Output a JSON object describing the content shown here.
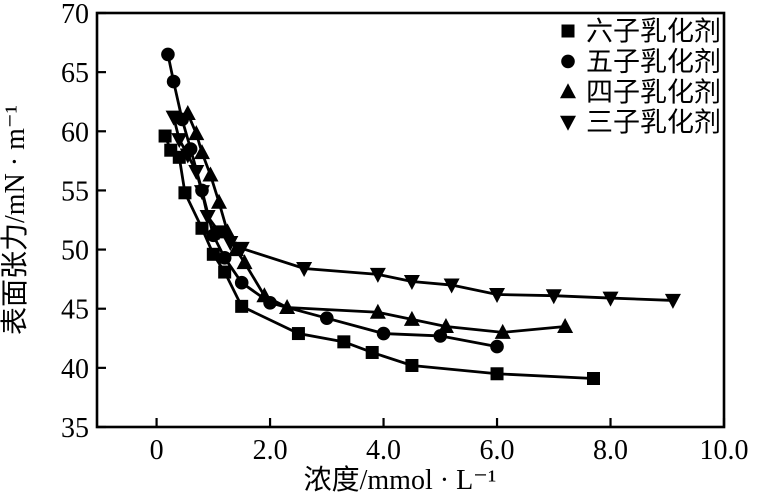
{
  "figure": {
    "background_color": "#ffffff",
    "ink_color": "#000000"
  },
  "chart_data": {
    "type": "line",
    "title": "",
    "xlabel": "浓度/mmol · L⁻¹",
    "ylabel": "表面张力/mN · m⁻¹",
    "xlim": [
      -1.05,
      10.0
    ],
    "ylim": [
      35,
      70
    ],
    "x_ticks": [
      0,
      2.0,
      4.0,
      6.0,
      8.0,
      10.0
    ],
    "x_tick_labels": [
      "0",
      "2.0",
      "4.0",
      "6.0",
      "8.0",
      "10.0"
    ],
    "y_ticks": [
      35,
      40,
      45,
      50,
      55,
      60,
      65,
      70
    ],
    "y_tick_labels": [
      "35",
      "40",
      "45",
      "50",
      "55",
      "60",
      "65",
      "70"
    ],
    "grid": false,
    "legend_position": "top-right-inside",
    "series": [
      {
        "name": "六子乳化剂",
        "marker": "square",
        "color": "#000000",
        "x": [
          0.15,
          0.25,
          0.4,
          0.5,
          0.8,
          1.0,
          1.2,
          1.5,
          2.5,
          3.3,
          3.8,
          4.5,
          6.0,
          7.7
        ],
        "y": [
          59.6,
          58.4,
          57.8,
          54.8,
          51.8,
          49.6,
          48.1,
          45.2,
          42.9,
          42.2,
          41.3,
          40.2,
          39.5,
          39.1
        ]
      },
      {
        "name": "五子乳化剂",
        "marker": "circle",
        "color": "#000000",
        "x": [
          0.2,
          0.3,
          0.45,
          0.6,
          0.8,
          1.0,
          1.2,
          1.5,
          2.0,
          3.0,
          4.0,
          5.0,
          6.0
        ],
        "y": [
          66.5,
          64.2,
          61.0,
          58.5,
          55.0,
          51.2,
          49.3,
          47.2,
          45.5,
          44.2,
          42.9,
          42.7,
          41.8
        ]
      },
      {
        "name": "四子乳化剂",
        "marker": "triangle-up",
        "color": "#000000",
        "x": [
          0.55,
          0.7,
          0.8,
          0.95,
          1.1,
          1.25,
          1.4,
          1.55,
          1.9,
          2.3,
          3.9,
          4.5,
          5.1,
          6.1,
          7.2
        ],
        "y": [
          61.5,
          59.8,
          58.2,
          56.3,
          54.0,
          51.5,
          50.0,
          48.9,
          46.1,
          45.1,
          44.7,
          44.1,
          43.5,
          43.0,
          43.5
        ]
      },
      {
        "name": "三子乳化剂",
        "marker": "triangle-down",
        "color": "#000000",
        "x": [
          0.3,
          0.4,
          0.55,
          0.7,
          0.8,
          0.9,
          1.1,
          1.3,
          1.5,
          2.6,
          3.9,
          4.5,
          5.2,
          6.0,
          7.0,
          8.0,
          9.1
        ],
        "y": [
          61.2,
          59.3,
          58.0,
          56.6,
          54.9,
          52.8,
          51.5,
          50.6,
          50.1,
          48.4,
          47.9,
          47.3,
          47.0,
          46.2,
          46.1,
          45.9,
          45.7
        ]
      }
    ]
  }
}
